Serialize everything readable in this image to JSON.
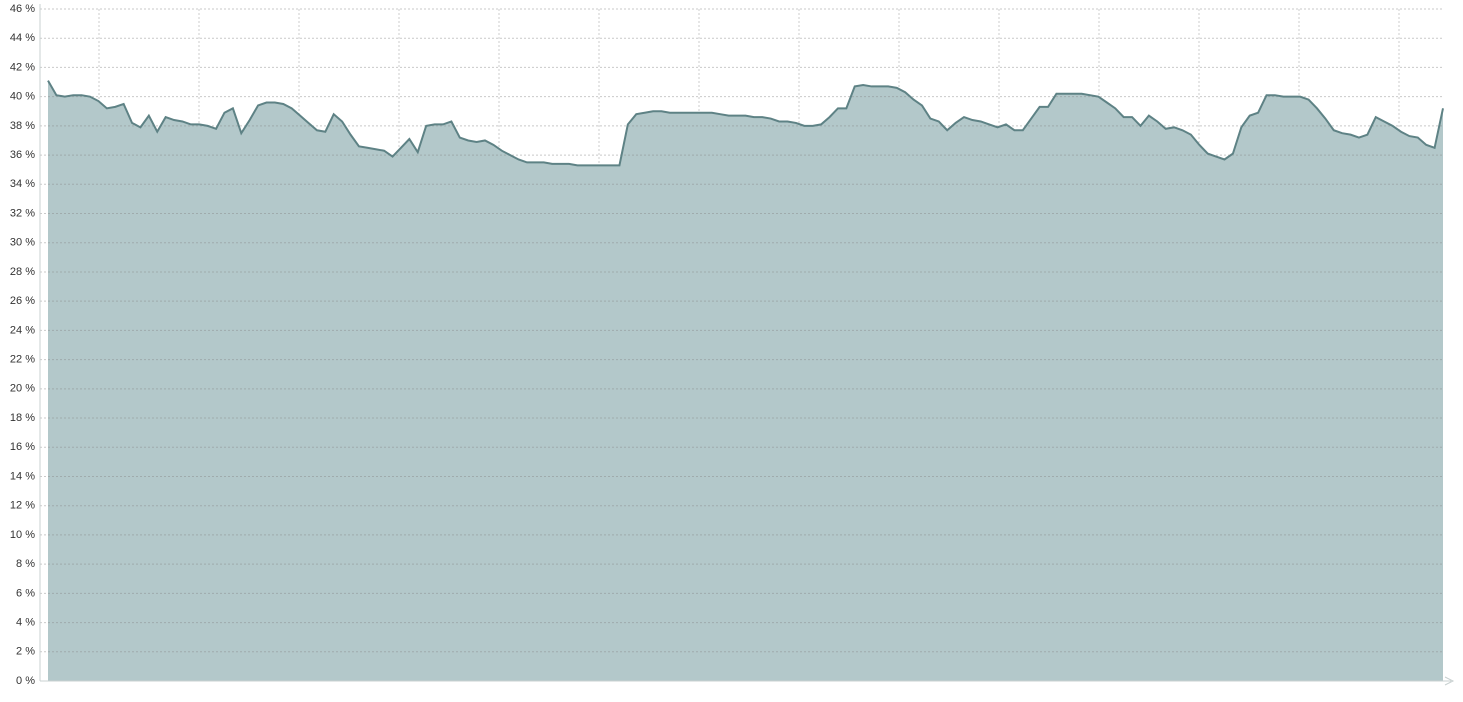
{
  "chart_data": {
    "type": "area",
    "color": "#b3c8ca",
    "line_color": "#5e8285",
    "values": [
      41.1,
      40.1,
      40.0,
      40.1,
      40.1,
      40.0,
      39.7,
      39.2,
      39.3,
      39.5,
      38.2,
      37.9,
      38.7,
      37.6,
      38.6,
      38.4,
      38.3,
      38.1,
      38.1,
      38.0,
      37.8,
      38.9,
      39.2,
      37.5,
      38.4,
      39.4,
      39.6,
      39.6,
      39.5,
      39.2,
      38.7,
      38.2,
      37.7,
      37.6,
      38.8,
      38.3,
      37.4,
      36.6,
      36.5,
      36.4,
      36.3,
      35.9,
      36.5,
      37.1,
      36.2,
      38.0,
      38.1,
      38.1,
      38.3,
      37.2,
      37.0,
      36.9,
      37.0,
      36.7,
      36.3,
      36.0,
      35.7,
      35.5,
      35.5,
      35.5,
      35.4,
      35.4,
      35.4,
      35.3,
      35.3,
      35.3,
      35.3,
      35.3,
      35.3,
      38.1,
      38.8,
      38.9,
      39.0,
      39.0,
      38.9,
      38.9,
      38.9,
      38.9,
      38.9,
      38.9,
      38.8,
      38.7,
      38.7,
      38.7,
      38.6,
      38.6,
      38.5,
      38.3,
      38.3,
      38.2,
      38.0,
      38.0,
      38.1,
      38.6,
      39.2,
      39.2,
      40.7,
      40.8,
      40.7,
      40.7,
      40.7,
      40.6,
      40.3,
      39.8,
      39.4,
      38.5,
      38.3,
      37.7,
      38.2,
      38.6,
      38.4,
      38.3,
      38.1,
      37.9,
      38.1,
      37.7,
      37.7,
      38.5,
      39.3,
      39.3,
      40.2,
      40.2,
      40.2,
      40.2,
      40.1,
      40.0,
      39.6,
      39.2,
      38.6,
      38.6,
      38.0,
      38.7,
      38.3,
      37.8,
      37.9,
      37.7,
      37.4,
      36.7,
      36.1,
      35.9,
      35.7,
      36.1,
      37.9,
      38.7,
      38.9,
      40.1,
      40.1,
      40.0,
      40.0,
      40.0,
      39.8,
      39.2,
      38.5,
      37.7,
      37.5,
      37.4,
      37.2,
      37.4,
      38.6,
      38.3,
      38.0,
      37.6,
      37.3,
      37.2,
      36.7,
      36.5,
      39.2
    ],
    "ylim": [
      0,
      46
    ],
    "yticks": [
      {
        "value": 0,
        "label": "0 %"
      },
      {
        "value": 2,
        "label": "2 %"
      },
      {
        "value": 4,
        "label": "4 %"
      },
      {
        "value": 6,
        "label": "6 %"
      },
      {
        "value": 8,
        "label": "8 %"
      },
      {
        "value": 10,
        "label": "10 %"
      },
      {
        "value": 12,
        "label": "12 %"
      },
      {
        "value": 14,
        "label": "14 %"
      },
      {
        "value": 16,
        "label": "16 %"
      },
      {
        "value": 18,
        "label": "18 %"
      },
      {
        "value": 20,
        "label": "20 %"
      },
      {
        "value": 22,
        "label": "22 %"
      },
      {
        "value": 24,
        "label": "24 %"
      },
      {
        "value": 26,
        "label": "26 %"
      },
      {
        "value": 28,
        "label": "28 %"
      },
      {
        "value": 30,
        "label": "30 %"
      },
      {
        "value": 32,
        "label": "32 %"
      },
      {
        "value": 34,
        "label": "34 %"
      },
      {
        "value": 36,
        "label": "36 %"
      },
      {
        "value": 38,
        "label": "38 %"
      },
      {
        "value": 40,
        "label": "40 %"
      },
      {
        "value": 42,
        "label": "42 %"
      },
      {
        "value": 44,
        "label": "44 %"
      },
      {
        "value": 46,
        "label": "46 %"
      }
    ],
    "grid": true
  }
}
